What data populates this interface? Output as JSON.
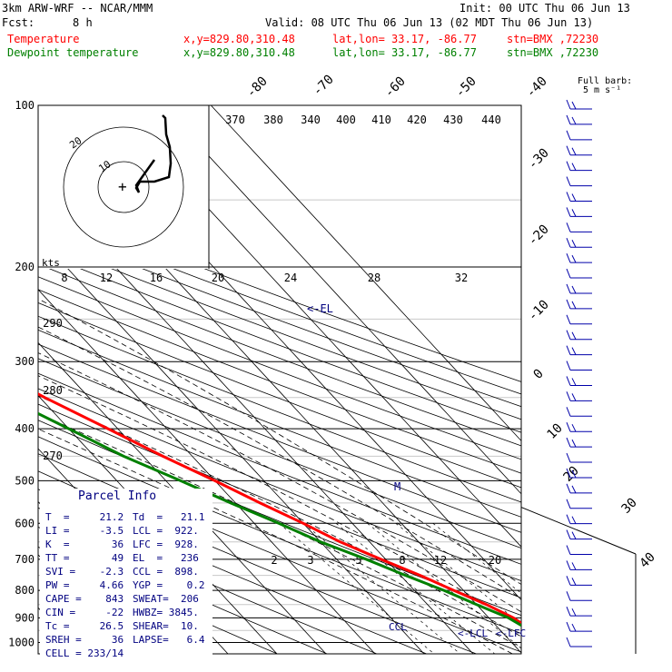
{
  "header": {
    "model": "3km ARW-WRF -- NCAR/MMM",
    "init": "Init: 00 UTC Thu 06 Jun 13",
    "fcst_label": "Fcst:",
    "fcst_value": "8 h",
    "valid": "Valid: 08 UTC Thu 06 Jun 13 (02 MDT Thu 06 Jun 13)",
    "lines": [
      {
        "name": "Temperature",
        "xy": "x,y=829.80,310.48",
        "latlon": "lat,lon= 33.17, -86.77",
        "stn": "stn=BMX ,72230",
        "color": "#ff0000"
      },
      {
        "name": "Dewpoint temperature",
        "xy": "x,y=829.80,310.48",
        "latlon": "lat,lon= 33.17, -86.77",
        "stn": "stn=BMX ,72230",
        "color": "#008000"
      }
    ],
    "barb_key": "Full barb:",
    "barb_key_units": "5 m s⁻¹"
  },
  "chart_data": {
    "type": "line",
    "diagram": "skew-T log-p",
    "pressure_levels": [
      100,
      200,
      300,
      400,
      500,
      600,
      700,
      800,
      900,
      1000
    ],
    "isotherm_labels": [
      {
        "label": "-80",
        "t": -80
      },
      {
        "label": "-70",
        "t": -70
      },
      {
        "label": "-60",
        "t": -60
      },
      {
        "label": "-50",
        "t": -50
      },
      {
        "label": "-40",
        "t": -40
      },
      {
        "label": "-30",
        "t": -30
      },
      {
        "label": "-20",
        "t": -20
      },
      {
        "label": "-10",
        "t": -10
      },
      {
        "label": "0",
        "t": 0
      },
      {
        "label": "10",
        "t": 10
      },
      {
        "label": "20",
        "t": 20
      },
      {
        "label": "30",
        "t": 30
      },
      {
        "label": "40",
        "t": 40
      }
    ],
    "theta_labels": [
      "370",
      "380",
      "340",
      "400",
      "410",
      "420",
      "430",
      "440"
    ],
    "theta_left_labels": [
      "290",
      "280",
      "270"
    ],
    "mixing_ratio_labels": [
      "2",
      "3",
      "5",
      "8",
      "12",
      "20"
    ],
    "hodograph_speed_labels": [
      "8",
      "12",
      "16",
      "20",
      "24",
      "28",
      "32"
    ],
    "hodograph_kts": "kts",
    "hodograph_ring_labels": [
      "10",
      "20"
    ],
    "series": [
      {
        "name": "Temperature",
        "color": "#ff0000",
        "points": [
          [
            21.2,
            1000
          ],
          [
            18,
            980
          ],
          [
            16.5,
            950
          ],
          [
            15,
            900
          ],
          [
            12,
            850
          ],
          [
            8,
            800
          ],
          [
            4,
            750
          ],
          [
            -1,
            700
          ],
          [
            -6,
            650
          ],
          [
            -10,
            600
          ],
          [
            -15,
            550
          ],
          [
            -20,
            500
          ],
          [
            -26,
            450
          ],
          [
            -32,
            400
          ],
          [
            -39,
            350
          ],
          [
            -46,
            300
          ],
          [
            -52,
            260
          ],
          [
            -56,
            230
          ],
          [
            -58,
            200
          ],
          [
            -60,
            180
          ],
          [
            -62,
            160
          ],
          [
            -63,
            140
          ],
          [
            -63,
            120
          ],
          [
            -61,
            110
          ],
          [
            -59,
            100
          ]
        ]
      },
      {
        "name": "Dewpoint temperature",
        "color": "#008000",
        "points": [
          [
            21.1,
            1000
          ],
          [
            18,
            980
          ],
          [
            16,
            950
          ],
          [
            14,
            900
          ],
          [
            10,
            850
          ],
          [
            6,
            800
          ],
          [
            1,
            750
          ],
          [
            -4,
            700
          ],
          [
            -10,
            650
          ],
          [
            -15,
            600
          ],
          [
            -21,
            550
          ],
          [
            -27,
            500
          ],
          [
            -34,
            450
          ],
          [
            -40,
            400
          ],
          [
            -47,
            350
          ],
          [
            -55,
            300
          ],
          [
            -56,
            270
          ],
          [
            -57,
            250
          ],
          [
            -60,
            230
          ],
          [
            -66,
            200
          ],
          [
            -76,
            180
          ],
          [
            -81,
            160
          ],
          [
            -85,
            145
          ],
          [
            -85,
            130
          ],
          [
            -84,
            115
          ],
          [
            -83,
            100
          ]
        ]
      }
    ],
    "annotations": [
      "<-EL",
      "M",
      "CCL",
      "<-LCL",
      "<-LFC"
    ],
    "parcel_info": {
      "title": "Parcel Info",
      "rows": [
        [
          "T  =     21.2",
          "Td  =   21.1"
        ],
        [
          "LI =     -3.5",
          "LCL =  922."
        ],
        [
          "K  =       36",
          "LFC =  928."
        ],
        [
          "TT =       49",
          "EL  =   236"
        ],
        [
          "SVI =    -2.3",
          "CCL =  898."
        ],
        [
          "PW =     4.66",
          "YGP =    0.2"
        ],
        [
          "CAPE =    843",
          "SWEAT=  206"
        ],
        [
          "CIN =     -22",
          "HWBZ= 3845."
        ],
        [
          "Tc =     26.5",
          "SHEAR=  10."
        ],
        [
          "SREH =     36",
          "LAPSE=   6.4"
        ],
        [
          "CELL = 233/14",
          ""
        ]
      ]
    },
    "wind_barbs": {
      "levels": 36,
      "direction": "westerly"
    }
  }
}
